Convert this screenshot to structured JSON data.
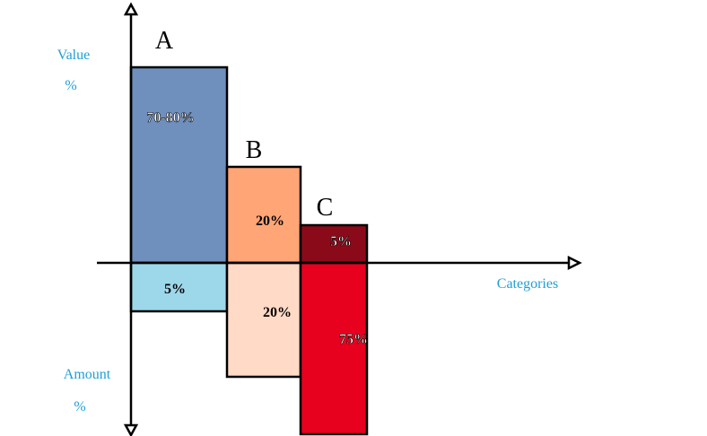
{
  "axis_labels": {
    "value": "Value",
    "value_unit": "%",
    "amount": "Amount",
    "amount_unit": "%",
    "categories": "Categories"
  },
  "categories": [
    {
      "name": "A",
      "upper": "70-80%",
      "lower": "5%"
    },
    {
      "name": "B",
      "upper": "20%",
      "lower": "20%"
    },
    {
      "name": "C",
      "upper": "5%",
      "lower": "75%"
    }
  ]
}
